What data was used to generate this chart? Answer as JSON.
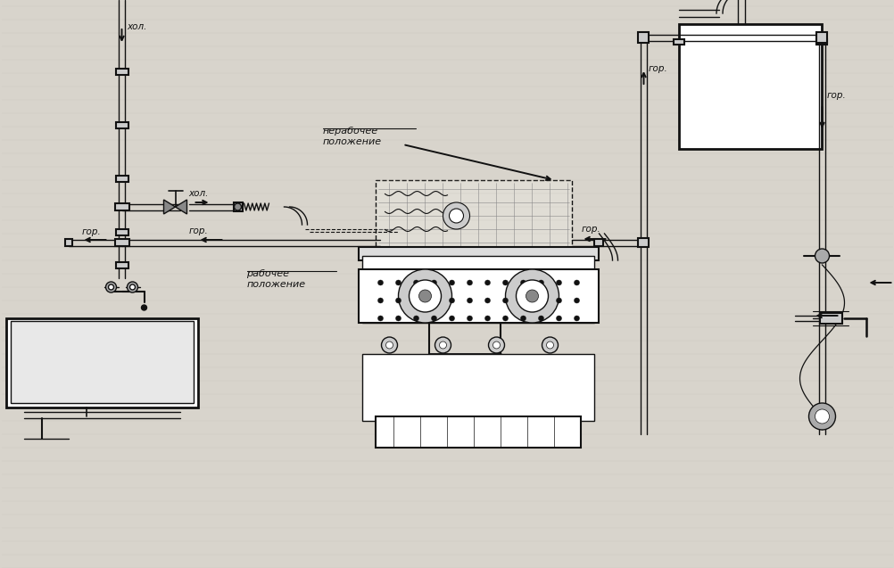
{
  "bg_color": "#d8d4cc",
  "line_color": "#111111",
  "text_color": "#111111",
  "labels": {
    "cold_top": "хол.",
    "cold_mid": "хол.",
    "hot_left": "гор.",
    "hot_right": "гор.",
    "gor_down": "гор.",
    "gor_up": "гор.",
    "non_working": "нерабочее\nположение",
    "working": "рабочее\nположение"
  }
}
